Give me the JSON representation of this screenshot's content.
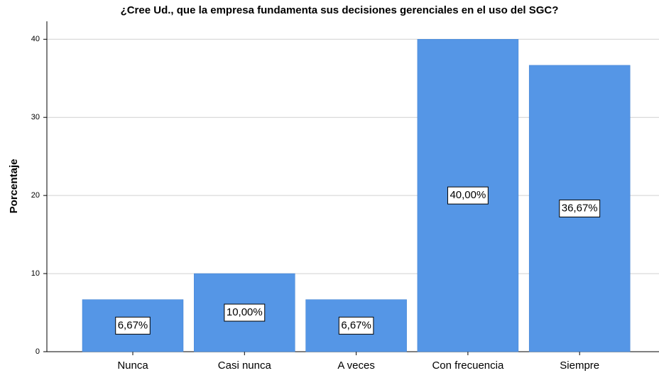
{
  "chart_data": {
    "type": "bar",
    "title": "¿Cree Ud., que la empresa fundamenta sus decisiones gerenciales en el uso del SGC?",
    "y_label": "Porcentaje",
    "categories": [
      "Nunca",
      "Casi nunca",
      "A veces",
      "Con frecuencia",
      "Siempre"
    ],
    "values": [
      6.67,
      10,
      6.67,
      40,
      36.67
    ],
    "value_labels": [
      "6,67%",
      "10,00%",
      "6,67%",
      "40,00%",
      "36,67%"
    ],
    "color": "#5596e6",
    "ylim": [
      0,
      42.3
    ],
    "yticks": [
      0,
      10,
      20,
      30,
      40
    ],
    "grid": true
  }
}
